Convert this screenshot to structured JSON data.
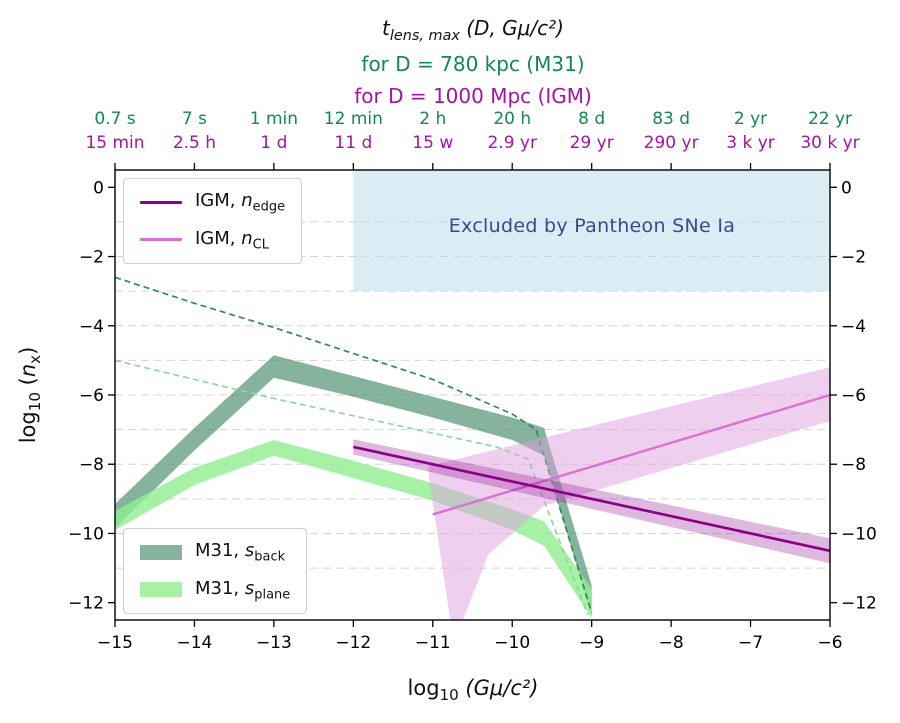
{
  "colors": {
    "igm_edge": "#8B008B",
    "igm_cl": "#DA70D6",
    "igm_cl_band": "#DDA0DD",
    "m31_back_band": "#438A68",
    "m31_back_dashed": "#2E8B57",
    "m31_plane_band": "#90EE90",
    "m31_plane_dashed": "#8FD69F",
    "excluded_fill": "#BBDDEB",
    "excluded_text": "#3F4788",
    "title_green": "#128A4E",
    "title_purple": "#A314A3",
    "grid": "#D4D4D4",
    "axis": "#000000"
  },
  "chart_data": {
    "type": "line",
    "title": {
      "var": "t",
      "sub": "lens, max",
      "rest": " (D, Gμ/c²)"
    },
    "subtitle_m31": "for D = 780 kpc (M31)",
    "subtitle_igm": "for D = 1000 Mpc (IGM)",
    "xlabel": {
      "pre": "log",
      "sub": "10",
      "rest": " (Gμ/c²)"
    },
    "ylabel": {
      "pre": "log",
      "sub": "10",
      "mid": " (",
      "var": "n",
      "sub2": "x",
      "end": ")"
    },
    "xlim": [
      -15,
      -6
    ],
    "ylim": [
      -12.5,
      0.5
    ],
    "x_ticks": [
      -15,
      -14,
      -13,
      -12,
      -11,
      -10,
      -9,
      -8,
      -7,
      -6
    ],
    "y_ticks": [
      0,
      -2,
      -4,
      -6,
      -8,
      -10,
      -12
    ],
    "grid_y": [
      -1,
      -2,
      -3,
      -4,
      -5,
      -6,
      -7,
      -8,
      -9,
      -10,
      -11
    ],
    "top_axis": {
      "m31_labels": [
        "0.7 s",
        "7 s",
        "1 min",
        "12 min",
        "2 h",
        "20 h",
        "8 d",
        "83 d",
        "2 yr",
        "22 yr"
      ],
      "igm_labels": [
        "15 min",
        "2.5 h",
        "1 d",
        "11 d",
        "15 w",
        "2.9 yr",
        "29 yr",
        "290 yr",
        "3 k yr",
        "30 k yr"
      ]
    },
    "excluded_region": {
      "x": [
        -12,
        -6
      ],
      "y_top": 0.5,
      "y_bottom": -3.0,
      "label": "Excluded by Pantheon SNe Ia"
    },
    "series": {
      "m31_back_band": {
        "x": [
          -15,
          -14,
          -13,
          -12,
          -11,
          -10,
          -9.6,
          -9.0
        ],
        "upper": [
          -9.15,
          -6.95,
          -4.85,
          -5.45,
          -6.05,
          -6.65,
          -6.95,
          -11.5
        ],
        "lower": [
          -9.85,
          -7.6,
          -5.5,
          -6.05,
          -6.65,
          -7.3,
          -7.75,
          -12.4
        ]
      },
      "m31_plane_band": {
        "x": [
          -15,
          -14,
          -13,
          -12,
          -11,
          -10,
          -9.6,
          -9.0
        ],
        "upper": [
          -9.35,
          -8.1,
          -7.3,
          -7.9,
          -8.55,
          -9.3,
          -9.65,
          -11.6
        ],
        "lower": [
          -9.9,
          -8.6,
          -7.75,
          -8.4,
          -9.05,
          -9.9,
          -10.35,
          -12.45
        ]
      },
      "m31_back_dashed": {
        "x": [
          -15,
          -14,
          -13,
          -12,
          -11,
          -10,
          -9.7,
          -9.0
        ],
        "y": [
          -2.6,
          -3.35,
          -4.05,
          -4.8,
          -5.55,
          -6.55,
          -7.0,
          -12.3
        ]
      },
      "m31_plane_dashed": {
        "x": [
          -15,
          -14,
          -13,
          -12,
          -11,
          -10.2,
          -9.8,
          -9.05
        ],
        "y": [
          -5.0,
          -5.55,
          -6.1,
          -6.6,
          -7.1,
          -7.5,
          -7.85,
          -12.35
        ]
      },
      "igm_edge": {
        "x": [
          -12,
          -6
        ],
        "y": [
          -7.5,
          -10.5
        ],
        "band_upper": [
          -7.28,
          -10.14
        ],
        "band_lower": [
          -7.72,
          -10.86
        ]
      },
      "igm_cl": {
        "x": [
          -11,
          -6
        ],
        "y": [
          -9.45,
          -6.0
        ],
        "band_polygon": [
          [
            -11.05,
            -8.05
          ],
          [
            -6,
            -5.2
          ],
          [
            -6,
            -6.75
          ],
          [
            -9.6,
            -9.2
          ],
          [
            -10.3,
            -10.6
          ],
          [
            -10.62,
            -12.5
          ],
          [
            -10.78,
            -12.5
          ],
          [
            -11.05,
            -8.35
          ]
        ]
      }
    },
    "legend_igm": [
      {
        "prefix": "IGM, ",
        "var": "n",
        "sub": "edge"
      },
      {
        "prefix": "IGM, ",
        "var": "n",
        "sub": "CL"
      }
    ],
    "legend_m31": [
      {
        "prefix": "M31, ",
        "var": "s",
        "sub": "back"
      },
      {
        "prefix": "M31, ",
        "var": "s",
        "sub": "plane"
      }
    ]
  }
}
